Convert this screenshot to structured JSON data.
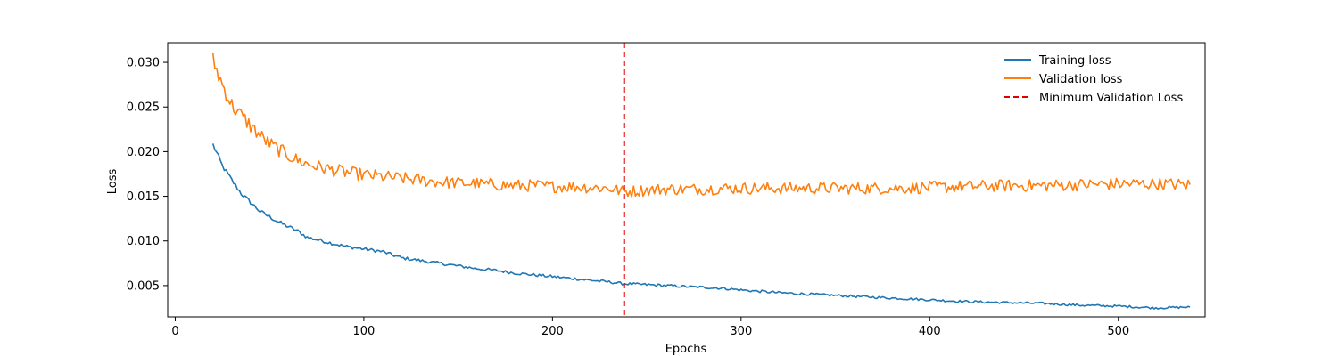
{
  "chart_data": {
    "type": "line",
    "title": "",
    "xlabel": "Epochs",
    "ylabel": "Loss",
    "xlim": [
      -4,
      546
    ],
    "ylim": [
      0.0015,
      0.0322
    ],
    "xticks": [
      0,
      100,
      200,
      300,
      400,
      500
    ],
    "xtick_labels": [
      "0",
      "100",
      "200",
      "300",
      "400",
      "500"
    ],
    "yticks": [
      0.005,
      0.01,
      0.015,
      0.02,
      0.025,
      0.03
    ],
    "ytick_labels": [
      "0.005",
      "0.010",
      "0.015",
      "0.020",
      "0.025",
      "0.030"
    ],
    "grid": false,
    "legend_position": "top-right",
    "series": [
      {
        "name": "Training loss",
        "color": "#1f77b4",
        "x": [
          20,
          25,
          30,
          35,
          40,
          45,
          50,
          55,
          60,
          65,
          70,
          80,
          90,
          100,
          110,
          120,
          130,
          140,
          150,
          160,
          170,
          180,
          190,
          200,
          210,
          220,
          230,
          238,
          250,
          260,
          270,
          280,
          290,
          300,
          320,
          340,
          360,
          380,
          400,
          420,
          440,
          460,
          480,
          500,
          520,
          538
        ],
        "y": [
          0.0208,
          0.0184,
          0.0168,
          0.0153,
          0.0143,
          0.0133,
          0.0127,
          0.0121,
          0.0116,
          0.0111,
          0.0104,
          0.0099,
          0.0094,
          0.0091,
          0.0088,
          0.0081,
          0.0078,
          0.0075,
          0.0072,
          0.0069,
          0.0067,
          0.0064,
          0.0062,
          0.006,
          0.0058,
          0.0056,
          0.0054,
          0.0052,
          0.0051,
          0.005,
          0.0049,
          0.0048,
          0.0047,
          0.0045,
          0.0042,
          0.004,
          0.0038,
          0.0036,
          0.0034,
          0.0032,
          0.0031,
          0.003,
          0.0028,
          0.0027,
          0.0025,
          0.0026
        ]
      },
      {
        "name": "Validation loss",
        "color": "#ff7f0e",
        "x": [
          20,
          25,
          30,
          35,
          40,
          45,
          50,
          55,
          60,
          65,
          70,
          80,
          90,
          100,
          110,
          120,
          130,
          140,
          150,
          160,
          170,
          180,
          190,
          200,
          210,
          220,
          230,
          238,
          250,
          260,
          270,
          280,
          290,
          300,
          320,
          340,
          360,
          380,
          400,
          420,
          440,
          460,
          480,
          500,
          520,
          538
        ],
        "y": [
          0.0302,
          0.0275,
          0.0252,
          0.024,
          0.0229,
          0.0218,
          0.0209,
          0.0202,
          0.0196,
          0.019,
          0.0186,
          0.0181,
          0.0177,
          0.0174,
          0.0172,
          0.017,
          0.0168,
          0.0166,
          0.0165,
          0.0164,
          0.0163,
          0.0162,
          0.0162,
          0.0161,
          0.0161,
          0.016,
          0.0159,
          0.0155,
          0.0157,
          0.0158,
          0.0158,
          0.0158,
          0.0159,
          0.0159,
          0.0159,
          0.0159,
          0.0159,
          0.0159,
          0.016,
          0.0161,
          0.0162,
          0.0162,
          0.0163,
          0.0164,
          0.0164,
          0.0163
        ]
      },
      {
        "name": "Minimum Validation Loss",
        "color": "#e00000",
        "style": "dashed",
        "vline_x": 238
      }
    ]
  }
}
